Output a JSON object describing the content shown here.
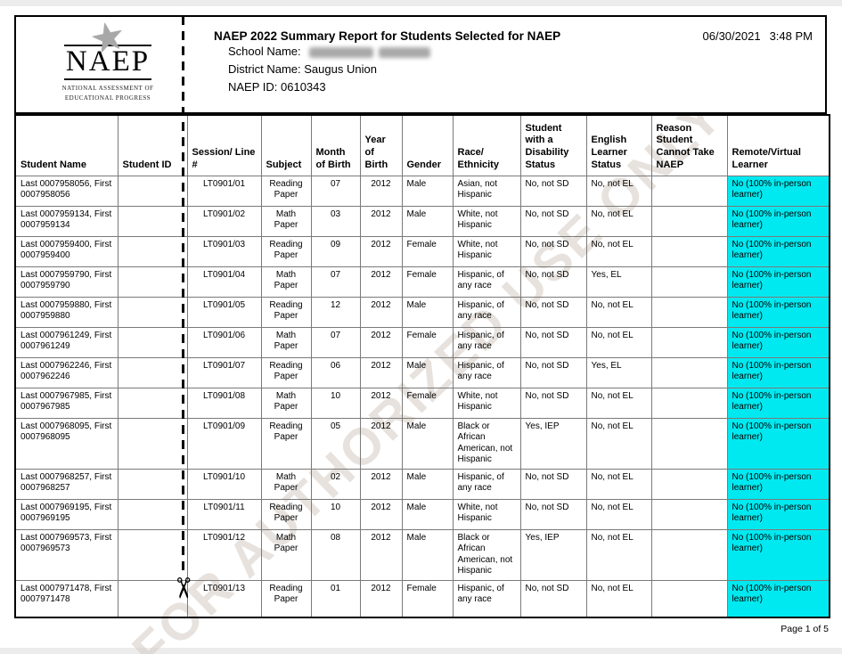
{
  "page": {
    "watermark": "FOR AUTHORIZED USE ONLY",
    "print_date": "06/30/2021",
    "print_time": "3:48 PM",
    "footer": "Page 1 of 5"
  },
  "logo": {
    "acronym": "NAEP",
    "subtitle": "NATIONAL ASSESSMENT OF EDUCATIONAL PROGRESS",
    "star_icon": "★"
  },
  "header": {
    "title": "NAEP 2022 Summary Report for Students Selected for NAEP",
    "school_label": "School Name:",
    "district_label": "District Name:",
    "district_name": "Saugus Union",
    "naep_id_label": "NAEP ID:",
    "naep_id": "0610343"
  },
  "colors": {
    "highlight": "#00E9F0"
  },
  "table": {
    "columns": [
      "Student Name",
      "Student ID",
      "Session/ Line #",
      "Subject",
      "Month of Birth",
      "Year of Birth",
      "Gender",
      "Race/ Ethnicity",
      "Student with a Disability Status",
      "English Learner Status",
      "Reason Student Cannot Take NAEP",
      "Remote/Virtual Learner"
    ],
    "rows": [
      {
        "name": "Last 0007958056, First 0007958056",
        "student_id": "",
        "session": "LT0901/01",
        "subject": "Reading Paper",
        "month": "07",
        "year": "2012",
        "gender": "Male",
        "race": "Asian, not Hispanic",
        "disability": "No, not SD",
        "el_status": "No, not EL",
        "reason": "",
        "remote": "No (100% in-person learner)"
      },
      {
        "name": "Last 0007959134, First 0007959134",
        "student_id": "",
        "session": "LT0901/02",
        "subject": "Math Paper",
        "month": "03",
        "year": "2012",
        "gender": "Male",
        "race": "White, not Hispanic",
        "disability": "No, not SD",
        "el_status": "No, not EL",
        "reason": "",
        "remote": "No (100% in-person learner)"
      },
      {
        "name": "Last 0007959400, First 0007959400",
        "student_id": "",
        "session": "LT0901/03",
        "subject": "Reading Paper",
        "month": "09",
        "year": "2012",
        "gender": "Female",
        "race": "White, not Hispanic",
        "disability": "No, not SD",
        "el_status": "No, not EL",
        "reason": "",
        "remote": "No (100% in-person learner)"
      },
      {
        "name": "Last 0007959790, First 0007959790",
        "student_id": "",
        "session": "LT0901/04",
        "subject": "Math Paper",
        "month": "07",
        "year": "2012",
        "gender": "Female",
        "race": "Hispanic, of any race",
        "disability": "No, not SD",
        "el_status": "Yes, EL",
        "reason": "",
        "remote": "No (100% in-person learner)"
      },
      {
        "name": "Last 0007959880, First 0007959880",
        "student_id": "",
        "session": "LT0901/05",
        "subject": "Reading Paper",
        "month": "12",
        "year": "2012",
        "gender": "Male",
        "race": "Hispanic, of any race",
        "disability": "No, not SD",
        "el_status": "No, not EL",
        "reason": "",
        "remote": "No (100% in-person learner)"
      },
      {
        "name": "Last 0007961249, First 0007961249",
        "student_id": "",
        "session": "LT0901/06",
        "subject": "Math Paper",
        "month": "07",
        "year": "2012",
        "gender": "Female",
        "race": "Hispanic, of any race",
        "disability": "No, not SD",
        "el_status": "No, not EL",
        "reason": "",
        "remote": "No (100% in-person learner)"
      },
      {
        "name": "Last 0007962246, First 0007962246",
        "student_id": "",
        "session": "LT0901/07",
        "subject": "Reading Paper",
        "month": "06",
        "year": "2012",
        "gender": "Male",
        "race": "Hispanic, of any race",
        "disability": "No, not SD",
        "el_status": "Yes, EL",
        "reason": "",
        "remote": "No (100% in-person learner)"
      },
      {
        "name": "Last 0007967985, First 0007967985",
        "student_id": "",
        "session": "LT0901/08",
        "subject": "Math Paper",
        "month": "10",
        "year": "2012",
        "gender": "Female",
        "race": "White, not Hispanic",
        "disability": "No, not SD",
        "el_status": "No, not EL",
        "reason": "",
        "remote": "No (100% in-person learner)"
      },
      {
        "name": "Last 0007968095, First 0007968095",
        "student_id": "",
        "session": "LT0901/09",
        "subject": "Reading Paper",
        "month": "05",
        "year": "2012",
        "gender": "Male",
        "race": "Black or African American, not Hispanic",
        "disability": "Yes, IEP",
        "el_status": "No, not EL",
        "reason": "",
        "remote": "No (100% in-person learner)"
      },
      {
        "name": "Last 0007968257, First 0007968257",
        "student_id": "",
        "session": "LT0901/10",
        "subject": "Math Paper",
        "month": "02",
        "year": "2012",
        "gender": "Male",
        "race": "Hispanic, of any race",
        "disability": "No, not SD",
        "el_status": "No, not EL",
        "reason": "",
        "remote": "No (100% in-person learner)"
      },
      {
        "name": "Last 0007969195, First 0007969195",
        "student_id": "",
        "session": "LT0901/11",
        "subject": "Reading Paper",
        "month": "10",
        "year": "2012",
        "gender": "Male",
        "race": "White, not Hispanic",
        "disability": "No, not SD",
        "el_status": "No, not EL",
        "reason": "",
        "remote": "No (100% in-person learner)"
      },
      {
        "name": "Last 0007969573, First 0007969573",
        "student_id": "",
        "session": "LT0901/12",
        "subject": "Math Paper",
        "month": "08",
        "year": "2012",
        "gender": "Male",
        "race": "Black or African American, not Hispanic",
        "disability": "Yes, IEP",
        "el_status": "No, not EL",
        "reason": "",
        "remote": "No (100% in-person learner)"
      },
      {
        "name": "Last 0007971478, First 0007971478",
        "student_id": "",
        "session": "LT0901/13",
        "subject": "Reading Paper",
        "month": "01",
        "year": "2012",
        "gender": "Female",
        "race": "Hispanic, of any race",
        "disability": "No, not SD",
        "el_status": "No, not EL",
        "reason": "",
        "remote": "No (100% in-person learner)"
      }
    ]
  }
}
